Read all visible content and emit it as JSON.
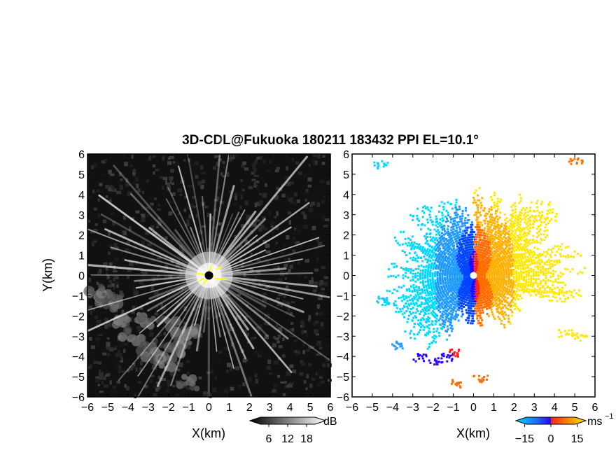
{
  "title": "3D-CDL@Fukuoka 180211 183432 PPI EL=10.1°",
  "colors": {
    "reflectivity_dark": "#101010",
    "reflectivity_light": "#ffffff",
    "clutter": "#ffff00",
    "velocity_cmap": [
      "#00d8ff",
      "#1f9bff",
      "#0044ff",
      "#2a00ff",
      "#ff1f1f",
      "#ff7a00",
      "#ffb000",
      "#ffe800"
    ],
    "radar_site_left": "#000000",
    "radar_site_right": "#ffffff"
  },
  "chart_data": [
    {
      "type": "heatmap",
      "panel": "left",
      "field": "reflectivity",
      "xlabel": "X(km)",
      "ylabel": "Y(km)",
      "xlim": [
        -6,
        6
      ],
      "ylim": [
        -6,
        6
      ],
      "xticks": [
        "−6",
        "−5",
        "−4",
        "−3",
        "−2",
        "−1",
        "0",
        "1",
        "2",
        "3",
        "4",
        "5",
        "6"
      ],
      "yticks": [
        "−6",
        "−5",
        "−4",
        "−3",
        "−2",
        "−1",
        "0",
        "1",
        "2",
        "3",
        "4",
        "5",
        "6"
      ],
      "colorbar": {
        "unit": "dB",
        "ticks": [
          "6",
          "12",
          "18"
        ],
        "tick_values": [
          6,
          12,
          18
        ],
        "range": [
          0,
          24
        ]
      },
      "radar_site": [
        0,
        0
      ]
    },
    {
      "type": "heatmap",
      "panel": "right",
      "field": "doppler_velocity",
      "xlabel": "X(km)",
      "xlim": [
        -6,
        6
      ],
      "ylim": [
        -6,
        6
      ],
      "xticks": [
        "−6",
        "−5",
        "−4",
        "−3",
        "−2",
        "−1",
        "0",
        "1",
        "2",
        "3",
        "4",
        "5",
        "6"
      ],
      "yticks": [
        "−6",
        "−5",
        "−4",
        "−3",
        "−2",
        "−1",
        "0",
        "1",
        "2",
        "3",
        "4",
        "5",
        "6"
      ],
      "colorbar": {
        "unit": "ms",
        "unit_exponent": "−1",
        "ticks": [
          "−15",
          "0",
          "15"
        ],
        "tick_values": [
          -15,
          0,
          15
        ],
        "range": [
          -20,
          20
        ]
      },
      "radar_site": [
        0,
        0
      ]
    }
  ]
}
